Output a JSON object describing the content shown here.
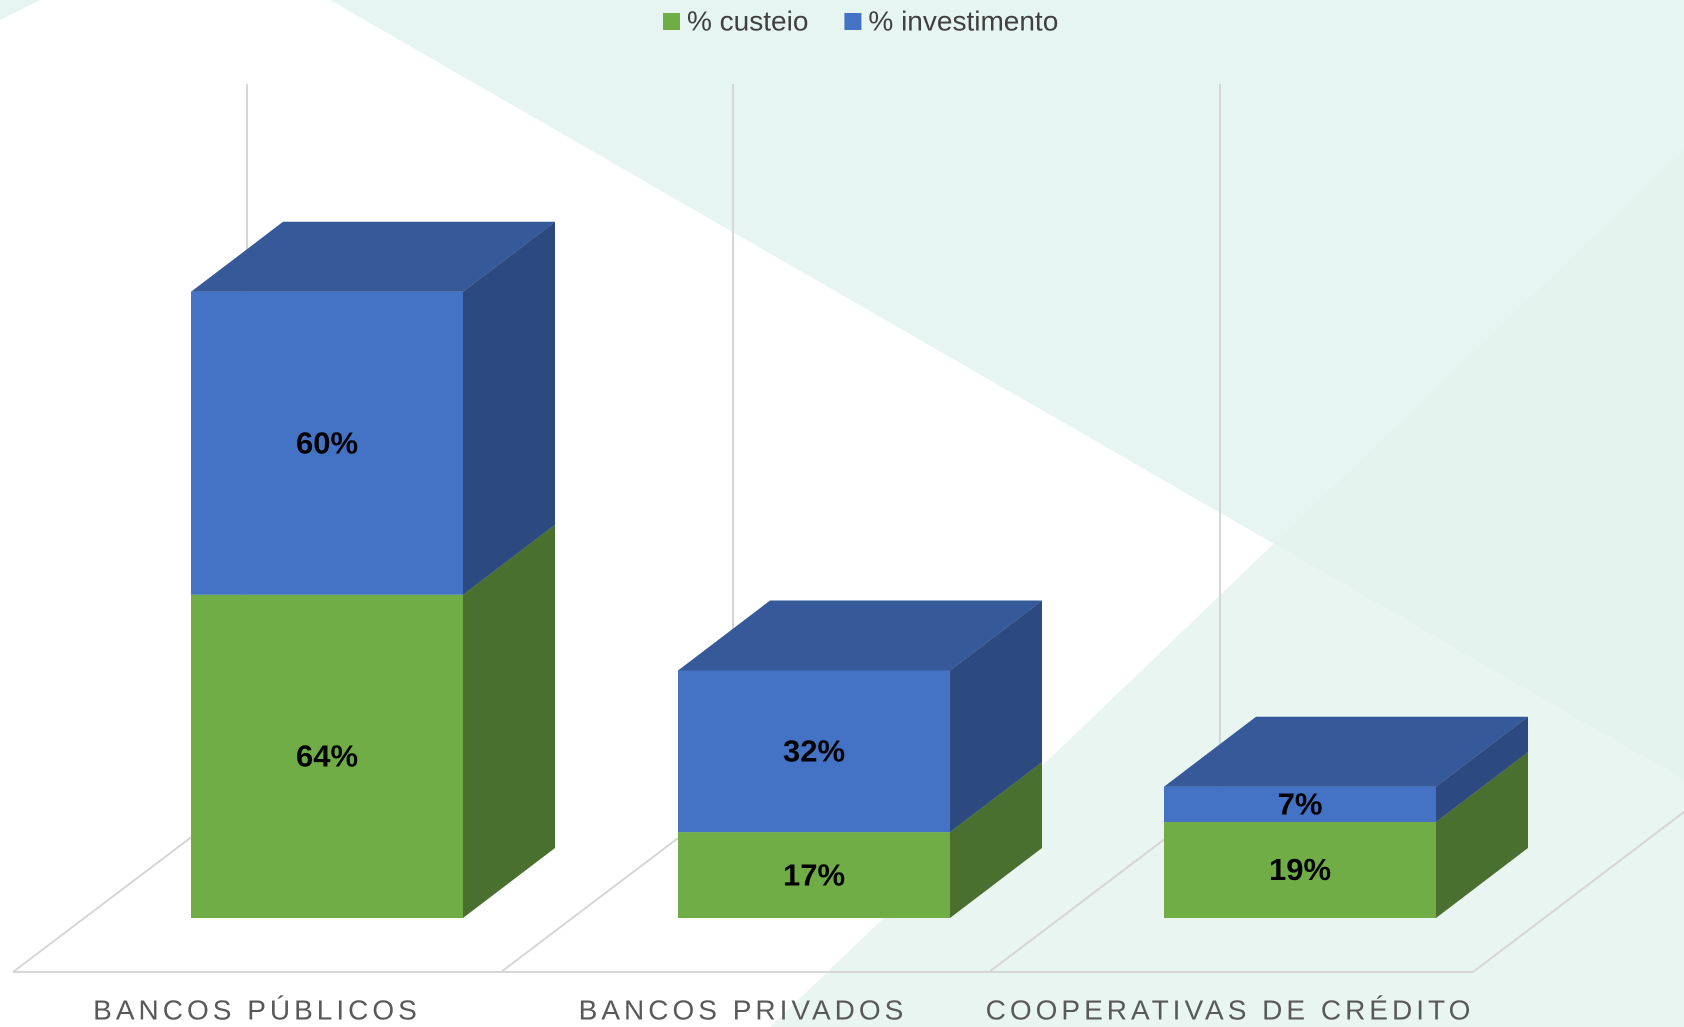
{
  "chart_data": {
    "type": "bar3d_stacked",
    "categories": [
      "BANCOS PÚBLICOS",
      "BANCOS PRIVADOS",
      "COOPERATIVAS DE CRÉDITO"
    ],
    "series": [
      {
        "name": "% custeio",
        "color": "#70ad47",
        "values": [
          64,
          17,
          19
        ],
        "value_labels": [
          "64%",
          "17%",
          "19%"
        ]
      },
      {
        "name": "% investimento",
        "color": "#4472c4",
        "values": [
          60,
          32,
          7
        ],
        "value_labels": [
          "60%",
          "32%",
          "7%"
        ]
      }
    ],
    "legend": "top"
  }
}
